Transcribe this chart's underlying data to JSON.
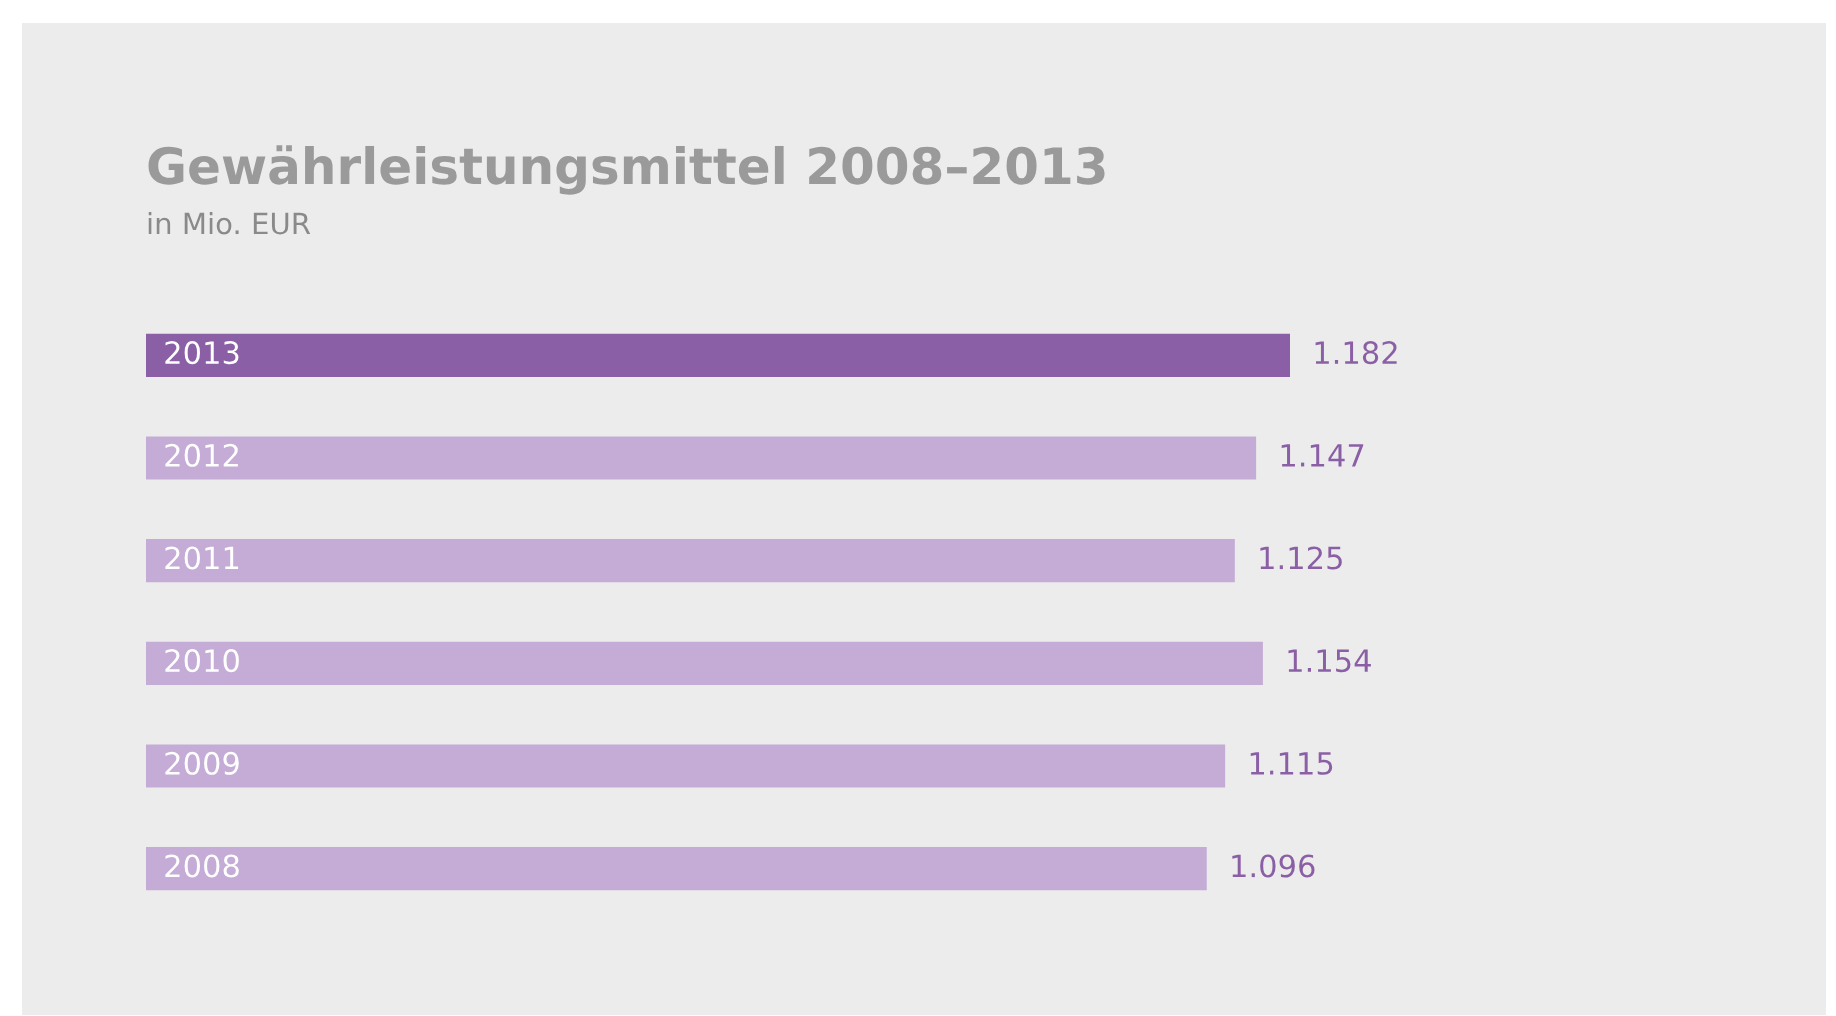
{
  "chart_data": {
    "type": "bar",
    "orientation": "horizontal",
    "title": "Gewährleistungsmittel 2008–2013",
    "subtitle": "in Mio. EUR",
    "categories": [
      "2013",
      "2012",
      "2011",
      "2010",
      "2009",
      "2008"
    ],
    "values": [
      1182,
      1147,
      1125,
      1154,
      1115,
      1096
    ],
    "value_labels": [
      "1.182",
      "1.147",
      "1.125",
      "1.154",
      "1.115",
      "1.096"
    ],
    "colors": [
      "#8b5fa5",
      "#c4acd6",
      "#c4acd6",
      "#c4acd6",
      "#c4acd6",
      "#c4acd6"
    ]
  }
}
